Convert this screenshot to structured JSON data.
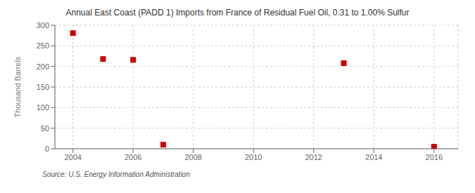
{
  "chart_data": {
    "type": "scatter",
    "title": "Annual East Coast (PADD 1) Imports from France of Residual Fuel Oil, 0.31 to 1.00% Sulfur",
    "ylabel": "Thousand Barrels",
    "annotations": [
      "Source: U.S. Energy Information Administration"
    ],
    "x": [
      2004,
      2005,
      2006,
      2007,
      2013,
      2016
    ],
    "values": [
      281,
      218,
      216,
      10,
      208,
      5
    ],
    "color": "#cc0000",
    "marker": "square",
    "xlim": [
      2003.4,
      2016.8
    ],
    "xticks": [
      2004,
      2006,
      2008,
      2010,
      2012,
      2014,
      2016
    ],
    "ylim": [
      0,
      300
    ],
    "yticks": [
      0,
      50,
      100,
      150,
      200,
      250,
      300
    ],
    "grid": true
  }
}
